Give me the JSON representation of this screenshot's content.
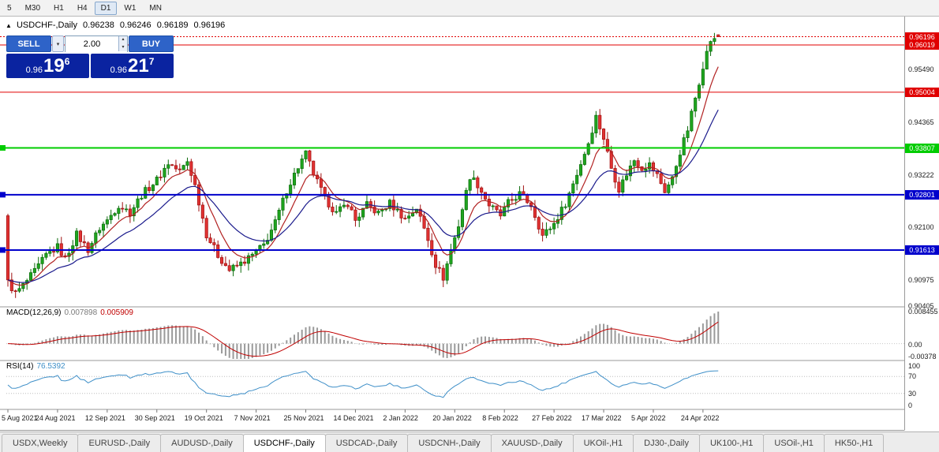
{
  "toolbar": {
    "timeframes": [
      {
        "label": "5",
        "active": false
      },
      {
        "label": "M30",
        "active": false
      },
      {
        "label": "H1",
        "active": false
      },
      {
        "label": "H4",
        "active": false
      },
      {
        "label": "D1",
        "active": true
      },
      {
        "label": "W1",
        "active": false
      },
      {
        "label": "MN",
        "active": false
      }
    ]
  },
  "icons": {
    "collapse_arrow": "▲",
    "chevron_down": "▾",
    "spinner_up": "▴",
    "spinner_down": "▾"
  },
  "chart": {
    "header": {
      "symbol_label": "USDCHF-,Daily",
      "open": "0.96238",
      "high": "0.96246",
      "low": "0.96189",
      "close": "0.96196"
    },
    "trade_panel": {
      "sell_label": "SELL",
      "buy_label": "BUY",
      "volume": "2.00",
      "sell_price": {
        "prefix": "0.96",
        "big": "19",
        "sup": "6"
      },
      "buy_price": {
        "prefix": "0.96",
        "big": "21",
        "sup": "7"
      }
    }
  },
  "chart_data": {
    "type": "candlestick",
    "symbol": "USDCHF-",
    "timeframe": "Daily",
    "bar_count": 187,
    "last_bar": {
      "open": 0.96238,
      "high": 0.96246,
      "low": 0.96189,
      "close": 0.96196
    },
    "current_price": {
      "value": 0.96196,
      "label": "0.96196"
    },
    "y_axis": {
      "min": 0.90405,
      "max": 0.96578,
      "plain_ticks": [
        {
          "text": "0.95490",
          "value": 0.9549
        },
        {
          "text": "0.94365",
          "value": 0.94365
        },
        {
          "text": "0.93222",
          "value": 0.93222
        },
        {
          "text": "0.92100",
          "value": 0.921
        },
        {
          "text": "0.90975",
          "value": 0.90975
        },
        {
          "text": "0.90405",
          "value": 0.90405
        }
      ]
    },
    "horizontal_levels": [
      {
        "value": 0.96019,
        "label": "0.96019",
        "color": "#e00000",
        "thickness": 1
      },
      {
        "value": 0.95004,
        "label": "0.95004",
        "color": "#e00000",
        "thickness": 1
      },
      {
        "value": 0.93807,
        "label": "0.93807",
        "color": "#00cc00",
        "thickness": 2
      },
      {
        "value": 0.92801,
        "label": "0.92801",
        "color": "#0000cc",
        "thickness": 2
      },
      {
        "value": 0.91613,
        "label": "0.91613",
        "color": "#0000cc",
        "thickness": 2
      }
    ],
    "x_axis": {
      "labels": [
        "5 Aug 2021",
        "24 Aug 2021",
        "12 Sep 2021",
        "30 Sep 2021",
        "19 Oct 2021",
        "7 Nov 2021",
        "25 Nov 2021",
        "14 Dec 2021",
        "2 Jan 2022",
        "20 Jan 2022",
        "8 Feb 2022",
        "27 Feb 2022",
        "17 Mar 2022",
        "5 Apr 2022",
        "24 Apr 2022"
      ],
      "label_every_bars": 13
    },
    "close_anchors": [
      [
        0,
        0.9092
      ],
      [
        2,
        0.9068
      ],
      [
        4,
        0.9085
      ],
      [
        7,
        0.9115
      ],
      [
        10,
        0.915
      ],
      [
        13,
        0.9168
      ],
      [
        15,
        0.9142
      ],
      [
        18,
        0.9195
      ],
      [
        21,
        0.9162
      ],
      [
        24,
        0.9208
      ],
      [
        26,
        0.9225
      ],
      [
        29,
        0.9258
      ],
      [
        32,
        0.9242
      ],
      [
        35,
        0.928
      ],
      [
        39,
        0.9312
      ],
      [
        42,
        0.9348
      ],
      [
        45,
        0.933
      ],
      [
        47,
        0.9352
      ],
      [
        49,
        0.93
      ],
      [
        52,
        0.9195
      ],
      [
        55,
        0.915
      ],
      [
        58,
        0.9118
      ],
      [
        61,
        0.9132
      ],
      [
        64,
        0.915
      ],
      [
        67,
        0.9172
      ],
      [
        70,
        0.922
      ],
      [
        73,
        0.929
      ],
      [
        76,
        0.934
      ],
      [
        78,
        0.9368
      ],
      [
        80,
        0.9325
      ],
      [
        83,
        0.9272
      ],
      [
        86,
        0.924
      ],
      [
        89,
        0.9262
      ],
      [
        91,
        0.9225
      ],
      [
        94,
        0.9258
      ],
      [
        97,
        0.924
      ],
      [
        100,
        0.9262
      ],
      [
        102,
        0.9245
      ],
      [
        104,
        0.9228
      ],
      [
        107,
        0.9252
      ],
      [
        110,
        0.9185
      ],
      [
        112,
        0.913
      ],
      [
        114,
        0.9102
      ],
      [
        116,
        0.916
      ],
      [
        118,
        0.9215
      ],
      [
        121,
        0.932
      ],
      [
        123,
        0.9302
      ],
      [
        126,
        0.9258
      ],
      [
        129,
        0.9235
      ],
      [
        131,
        0.9262
      ],
      [
        134,
        0.9282
      ],
      [
        137,
        0.9258
      ],
      [
        140,
        0.9192
      ],
      [
        143,
        0.9218
      ],
      [
        146,
        0.9262
      ],
      [
        149,
        0.9325
      ],
      [
        152,
        0.9392
      ],
      [
        154,
        0.9448
      ],
      [
        156,
        0.9402
      ],
      [
        158,
        0.9338
      ],
      [
        160,
        0.9292
      ],
      [
        162,
        0.9325
      ],
      [
        164,
        0.9355
      ],
      [
        166,
        0.9338
      ],
      [
        168,
        0.9345
      ],
      [
        170,
        0.9322
      ],
      [
        172,
        0.9288
      ],
      [
        174,
        0.9315
      ],
      [
        176,
        0.9372
      ],
      [
        178,
        0.942
      ],
      [
        180,
        0.9488
      ],
      [
        182,
        0.9558
      ],
      [
        184,
        0.9612
      ],
      [
        186,
        0.96196
      ]
    ],
    "overlays": [
      {
        "name": "ma-fast",
        "color": "#b22222",
        "period": 8
      },
      {
        "name": "ma-slow",
        "color": "#1a1a8c",
        "period": 21
      }
    ],
    "indicators": {
      "macd": {
        "params": [
          12,
          26,
          9
        ],
        "last_main": 0.007898,
        "last_signal": 0.005909,
        "axis_max": 0.008455,
        "axis_min": -0.00378
      },
      "rsi": {
        "period": 14,
        "last_value": 76.5392,
        "levels": [
          70,
          30
        ],
        "range": [
          0,
          100
        ]
      }
    }
  },
  "macd": {
    "label": "MACD(12,26,9)",
    "value_main": "0.007898",
    "value_signal": "0.005909",
    "axis_labels": [
      {
        "text": "0.008455",
        "value": 0.008455
      },
      {
        "text": "0.00",
        "value": 0
      },
      {
        "text": "-0.00378",
        "value": -0.00378
      }
    ]
  },
  "rsi": {
    "label": "RSI(14)",
    "value": "76.5392",
    "axis_labels": [
      {
        "text": "100",
        "value": 100
      },
      {
        "text": "70",
        "value": 70
      },
      {
        "text": "30",
        "value": 30
      },
      {
        "text": "0",
        "value": 0
      }
    ]
  },
  "tabs": [
    {
      "label": "USDX,Weekly",
      "active": false
    },
    {
      "label": "EURUSD-,Daily",
      "active": false
    },
    {
      "label": "AUDUSD-,Daily",
      "active": false
    },
    {
      "label": "USDCHF-,Daily",
      "active": true
    },
    {
      "label": "USDCAD-,Daily",
      "active": false
    },
    {
      "label": "USDCNH-,Daily",
      "active": false
    },
    {
      "label": "XAUUSD-,Daily",
      "active": false
    },
    {
      "label": "UKOil-,H1",
      "active": false
    },
    {
      "label": "DJ30-,Daily",
      "active": false
    },
    {
      "label": "UK100-,H1",
      "active": false
    },
    {
      "label": "USOil-,H1",
      "active": false
    },
    {
      "label": "HK50-,H1",
      "active": false
    }
  ],
  "colors": {
    "candle_up": "#1fa51f",
    "candle_up_border": "#0b6b0b",
    "candle_down": "#e03232",
    "candle_down_border": "#a01010",
    "level_red": "#e00000",
    "level_green": "#00cc00",
    "level_blue": "#0000cc",
    "macd_hist": "#9a9a9a",
    "macd_signal": "#c00000",
    "rsi_line": "#3e8fc8",
    "ma_fast": "#b22222",
    "ma_slow": "#1a1a8c",
    "buy_sell_button": "#2e63c8",
    "price_display": "#0a23a0"
  }
}
